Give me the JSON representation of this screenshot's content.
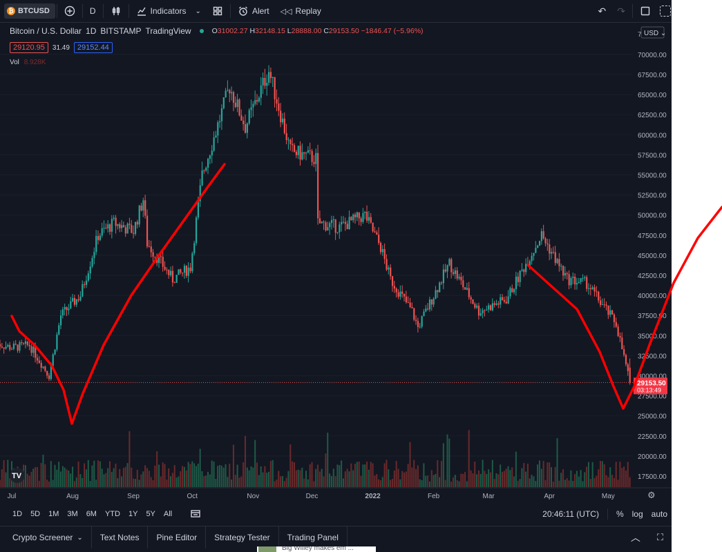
{
  "toolbar": {
    "symbol": "BTCUSD",
    "interval": "D",
    "indicators_label": "Indicators",
    "alert_label": "Alert",
    "replay_label": "Replay"
  },
  "legend": {
    "title": "Bitcoin / U.S. Dollar",
    "interval": "1D",
    "exchange": "BITSTAMP",
    "source": "TradingView",
    "open": "31002.27",
    "high": "32148.15",
    "low": "28888.00",
    "close": "29153.50",
    "change": "−1846.47 (−5.96%)",
    "bid": "29120.95",
    "spread": "31.49",
    "ask": "29152.44",
    "vol_label": "Vol",
    "vol_value": "8.928K"
  },
  "price_axis": {
    "currency": "USD",
    "ticks": [
      "70000.00",
      "67500.00",
      "65000.00",
      "62500.00",
      "60000.00",
      "57500.00",
      "55000.00",
      "52500.00",
      "50000.00",
      "47500.00",
      "45000.00",
      "42500.00",
      "40000.00",
      "37500.00",
      "35000.00",
      "32500.00",
      "30000.00",
      "27500.00",
      "25000.00",
      "22500.00",
      "20000.00",
      "17500.00"
    ],
    "top_partial": "7",
    "last_price": "29153.50",
    "countdown": "03:13:49"
  },
  "time_axis": {
    "labels": [
      "Jul",
      "Aug",
      "Sep",
      "Oct",
      "Nov",
      "Dec",
      "2022",
      "Feb",
      "Mar",
      "Apr",
      "May"
    ]
  },
  "timeframes": [
    "1D",
    "5D",
    "1M",
    "3M",
    "6M",
    "YTD",
    "1Y",
    "5Y",
    "All"
  ],
  "status": {
    "clock": "20:46:11 (UTC)",
    "percent": "%",
    "log": "log",
    "auto": "auto"
  },
  "bottom_tabs": [
    "Crypto Screener",
    "Text Notes",
    "Pine Editor",
    "Strategy Tester",
    "Trading Panel"
  ],
  "peek_text": "Big Willey makes em ...",
  "colors": {
    "up": "#26a69a",
    "down": "#ef5350",
    "bg": "#131722",
    "annotation": "#ff0000"
  },
  "chart_data": {
    "type": "candlestick",
    "title": "Bitcoin / U.S. Dollar",
    "ylim": [
      16000,
      72800
    ],
    "x_labels": [
      "Jul",
      "Aug",
      "Sep",
      "Oct",
      "Nov",
      "Dec",
      "2022",
      "Feb",
      "Mar",
      "Apr",
      "May"
    ],
    "close_anchors": [
      {
        "date": "2021-06-23",
        "value": 34000
      },
      {
        "date": "2021-07-01",
        "value": 33500
      },
      {
        "date": "2021-07-10",
        "value": 33800
      },
      {
        "date": "2021-07-20",
        "value": 30000
      },
      {
        "date": "2021-07-26",
        "value": 37500
      },
      {
        "date": "2021-08-05",
        "value": 40000
      },
      {
        "date": "2021-08-14",
        "value": 47500
      },
      {
        "date": "2021-08-22",
        "value": 49000
      },
      {
        "date": "2021-09-01",
        "value": 48000
      },
      {
        "date": "2021-09-06",
        "value": 52000
      },
      {
        "date": "2021-09-08",
        "value": 46500
      },
      {
        "date": "2021-09-21",
        "value": 42000
      },
      {
        "date": "2021-09-30",
        "value": 43500
      },
      {
        "date": "2021-10-06",
        "value": 55000
      },
      {
        "date": "2021-10-15",
        "value": 62000
      },
      {
        "date": "2021-10-20",
        "value": 66000
      },
      {
        "date": "2021-10-28",
        "value": 61000
      },
      {
        "date": "2021-11-09",
        "value": 68000
      },
      {
        "date": "2021-11-20",
        "value": 58000
      },
      {
        "date": "2021-12-03",
        "value": 57000
      },
      {
        "date": "2021-12-04",
        "value": 49000
      },
      {
        "date": "2021-12-15",
        "value": 48500
      },
      {
        "date": "2021-12-28",
        "value": 50000
      },
      {
        "date": "2022-01-05",
        "value": 46000
      },
      {
        "date": "2022-01-10",
        "value": 42000
      },
      {
        "date": "2022-01-21",
        "value": 38000
      },
      {
        "date": "2022-01-24",
        "value": 36000
      },
      {
        "date": "2022-02-09",
        "value": 44000
      },
      {
        "date": "2022-02-24",
        "value": 38000
      },
      {
        "date": "2022-03-10",
        "value": 39500
      },
      {
        "date": "2022-03-28",
        "value": 47500
      },
      {
        "date": "2022-04-10",
        "value": 42000
      },
      {
        "date": "2022-04-20",
        "value": 41500
      },
      {
        "date": "2022-05-05",
        "value": 36500
      },
      {
        "date": "2022-05-12",
        "value": 29153
      }
    ],
    "annotation": "hand-drawn red zigzag line"
  }
}
